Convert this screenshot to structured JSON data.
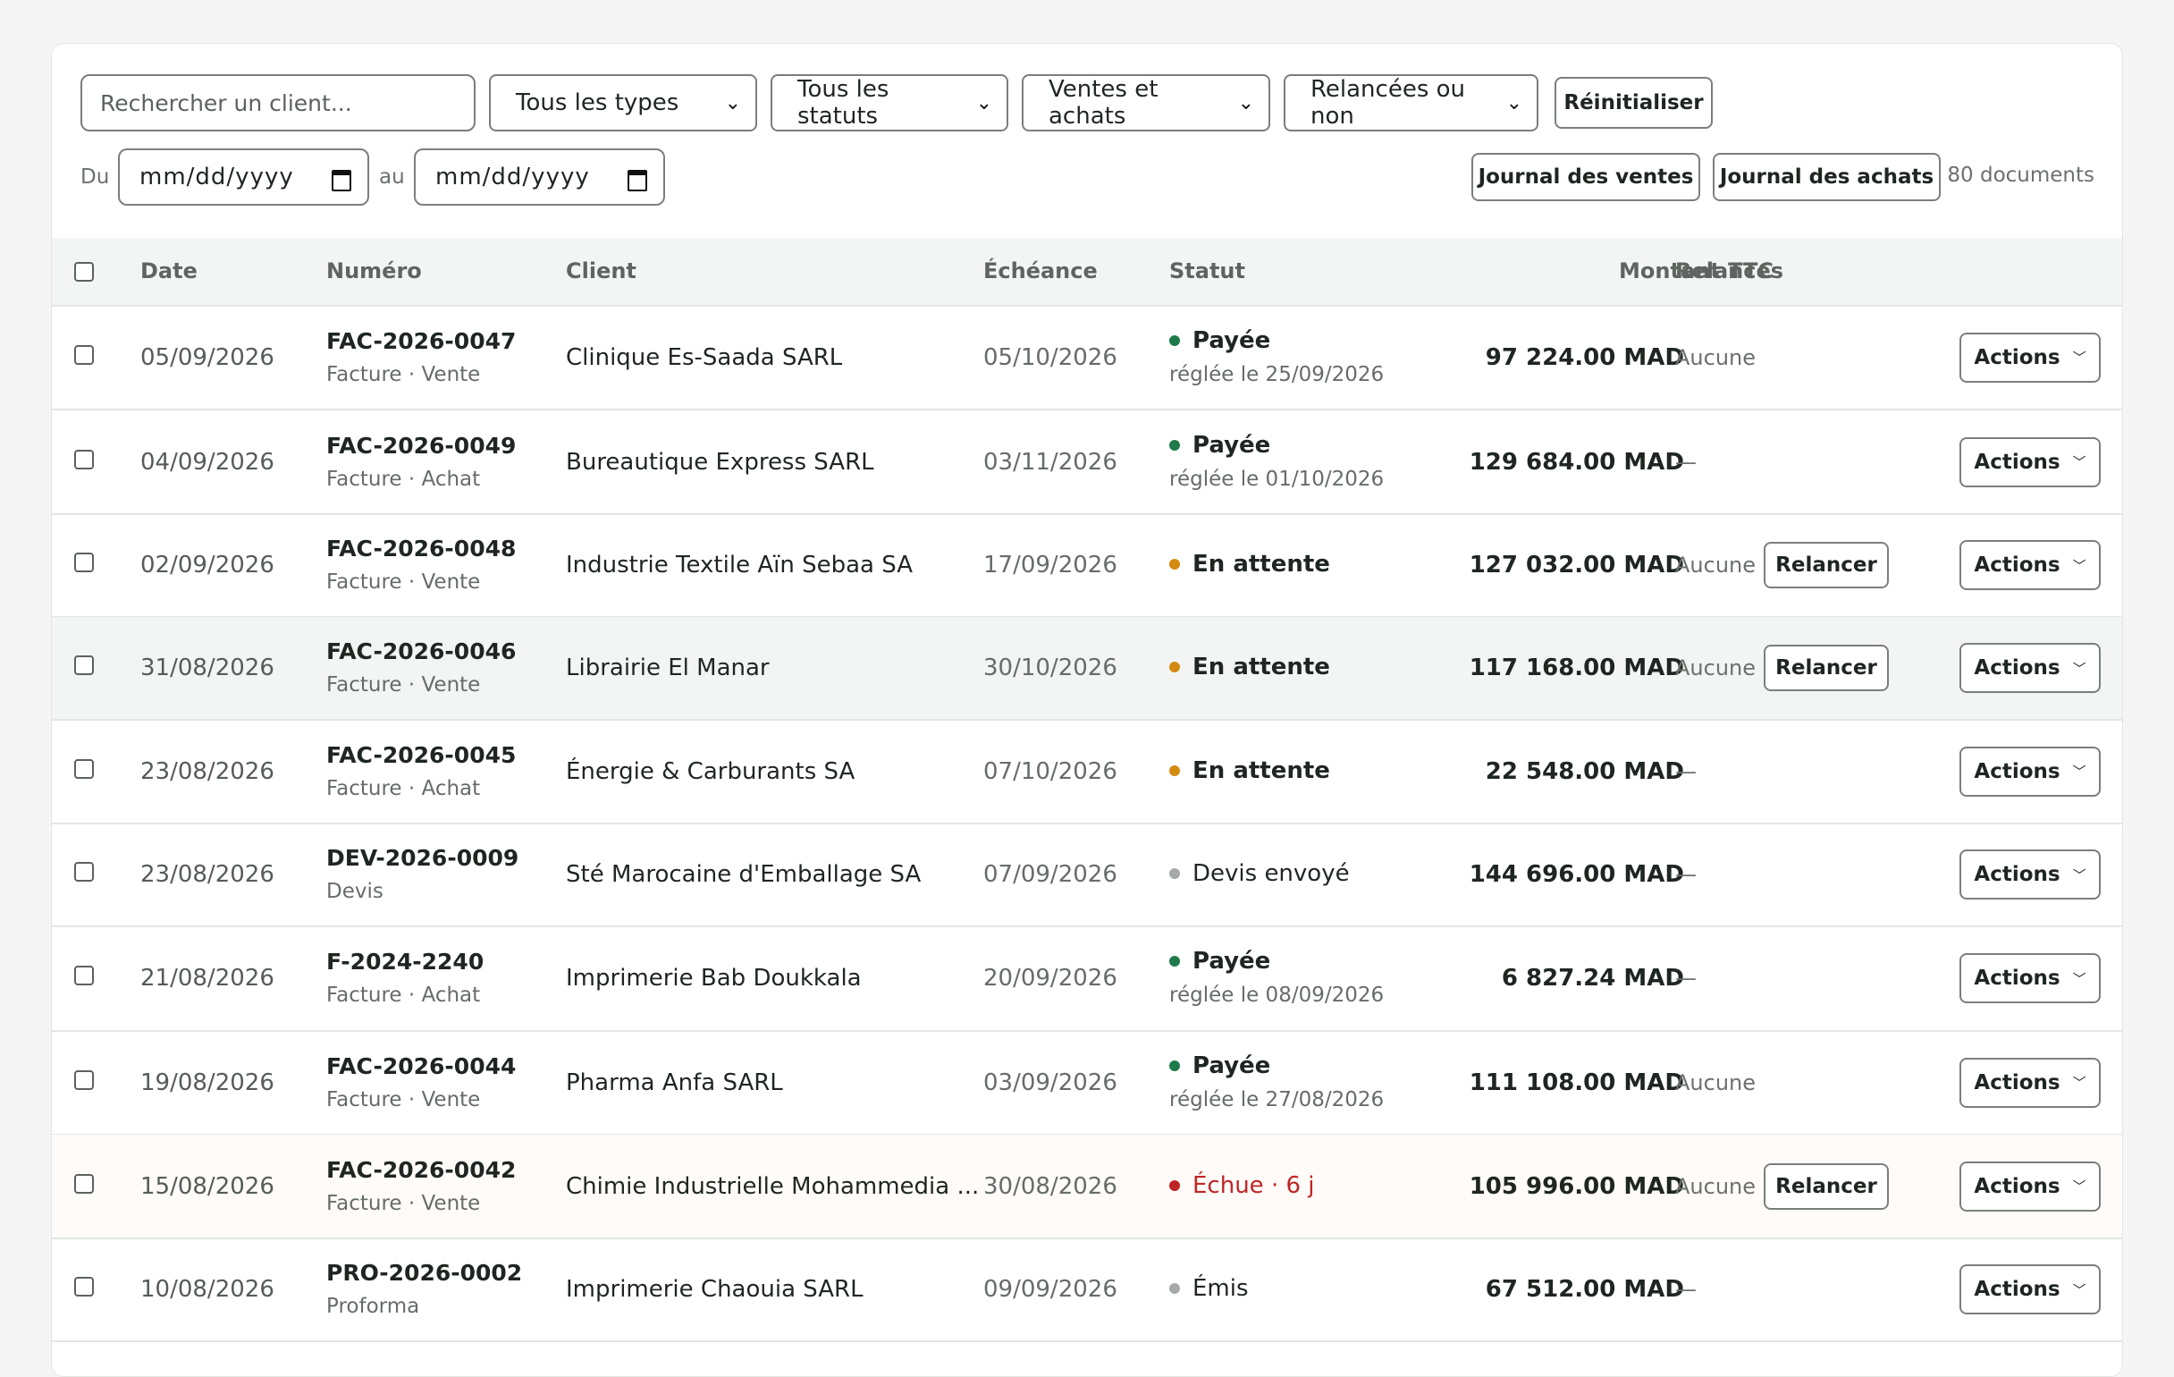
{
  "toolbar": {
    "search_placeholder": "Rechercher un client...",
    "type_filter": "Tous les types",
    "status_filter": "Tous les statuts",
    "direction_filter": "Ventes et achats",
    "reminder_filter": "Relancées ou non",
    "reset_label": "Réinitialiser",
    "date_from_label": "Du",
    "date_to_label": "au",
    "date_placeholder": "mm/dd/yyyy",
    "sales_journal_label": "Journal des ventes",
    "purchases_journal_label": "Journal des achats",
    "doc_count": "80 documents"
  },
  "table": {
    "headers": {
      "date": "Date",
      "number": "Numéro",
      "client": "Client",
      "due": "Échéance",
      "status": "Statut",
      "amount": "Montant TTC",
      "reminders": "Relances"
    },
    "relancer_label": "Relancer",
    "actions_label": "Actions",
    "status_colors": {
      "paid": "#1f7a4a",
      "pending": "#d48a10",
      "neutral": "#a5aaa7",
      "overdue": "#c02525"
    },
    "rows": [
      {
        "date": "05/09/2026",
        "number": "FAC-2026-0047",
        "kind": "Facture · Vente",
        "client": "Clinique Es-Saada SARL",
        "due": "05/10/2026",
        "status": "Payée",
        "status_sub": "réglée le 25/09/2026",
        "amount": "97 224.00 MAD",
        "reminders": "Aucune"
      },
      {
        "date": "04/09/2026",
        "number": "FAC-2026-0049",
        "kind": "Facture · Achat",
        "client": "Bureautique Express SARL",
        "due": "03/11/2026",
        "status": "Payée",
        "status_sub": "réglée le 01/10/2026",
        "amount": "129 684.00 MAD",
        "reminders": "—"
      },
      {
        "date": "02/09/2026",
        "number": "FAC-2026-0048",
        "kind": "Facture · Vente",
        "client": "Industrie Textile Aïn Sebaa SA",
        "due": "17/09/2026",
        "status": "En attente",
        "status_sub": "",
        "amount": "127 032.00 MAD",
        "reminders": "Aucune"
      },
      {
        "date": "31/08/2026",
        "number": "FAC-2026-0046",
        "kind": "Facture · Vente",
        "client": "Librairie El Manar",
        "due": "30/10/2026",
        "status": "En attente",
        "status_sub": "",
        "amount": "117 168.00 MAD",
        "reminders": "Aucune"
      },
      {
        "date": "23/08/2026",
        "number": "FAC-2026-0045",
        "kind": "Facture · Achat",
        "client": "Énergie & Carburants SA",
        "due": "07/10/2026",
        "status": "En attente",
        "status_sub": "",
        "amount": "22 548.00 MAD",
        "reminders": "—"
      },
      {
        "date": "23/08/2026",
        "number": "DEV-2026-0009",
        "kind": "Devis",
        "client": "Sté Marocaine d'Emballage SA",
        "due": "07/09/2026",
        "status": "Devis envoyé",
        "status_sub": "",
        "amount": "144 696.00 MAD",
        "reminders": "—"
      },
      {
        "date": "21/08/2026",
        "number": "F-2024-2240",
        "kind": "Facture · Achat",
        "client": "Imprimerie Bab Doukkala",
        "due": "20/09/2026",
        "status": "Payée",
        "status_sub": "réglée le 08/09/2026",
        "amount": "6 827.24 MAD",
        "reminders": "—"
      },
      {
        "date": "19/08/2026",
        "number": "FAC-2026-0044",
        "kind": "Facture · Vente",
        "client": "Pharma Anfa SARL",
        "due": "03/09/2026",
        "status": "Payée",
        "status_sub": "réglée le 27/08/2026",
        "amount": "111 108.00 MAD",
        "reminders": "Aucune"
      },
      {
        "date": "15/08/2026",
        "number": "FAC-2026-0042",
        "kind": "Facture · Vente",
        "client": "Chimie Industrielle Mohammedia ...",
        "due": "30/08/2026",
        "status": "Échue · 6 j",
        "status_sub": "",
        "amount": "105 996.00 MAD",
        "reminders": "Aucune"
      },
      {
        "date": "10/08/2026",
        "number": "PRO-2026-0002",
        "kind": "Proforma",
        "client": "Imprimerie Chaouia SARL",
        "due": "09/09/2026",
        "status": "Émis",
        "status_sub": "",
        "amount": "67 512.00 MAD",
        "reminders": "—"
      }
    ]
  }
}
